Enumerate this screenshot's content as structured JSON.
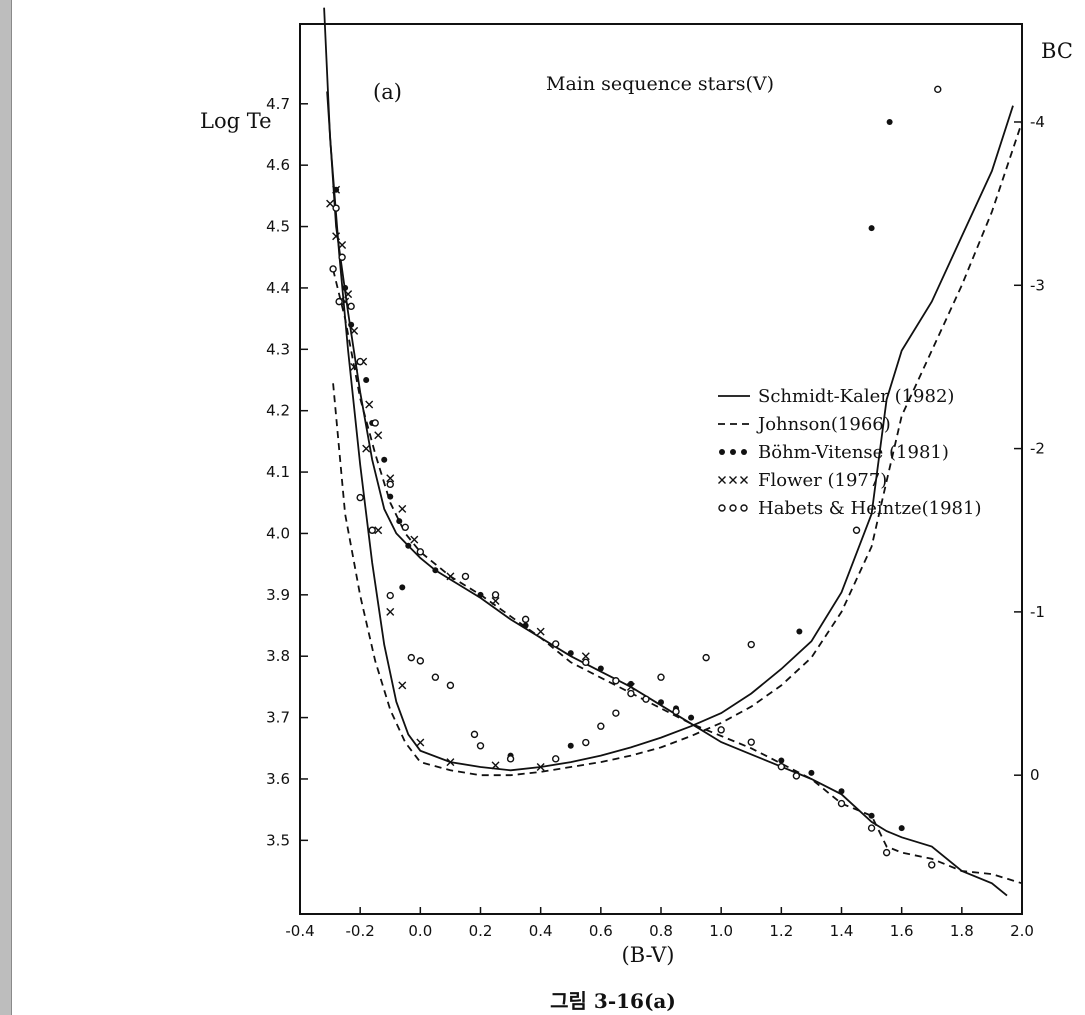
{
  "chart_data": {
    "type": "line",
    "panel_label": "(a)",
    "annotation": "Main sequence stars(V)",
    "xlabel": "(B-V)",
    "ylabel_left": "Log Te",
    "ylabel_right": "BC",
    "caption": "그림 3-16(a)",
    "xlim": [
      -0.4,
      2.0
    ],
    "ylim_left": [
      3.38,
      4.83
    ],
    "ylim_right": [
      0.85,
      -4.6
    ],
    "grid": false,
    "legend_position": "center-right",
    "x_ticks": [
      "-0.4",
      "-0.2",
      "0.0",
      "0.2",
      "0.4",
      "0.6",
      "0.8",
      "1.0",
      "1.2",
      "1.4",
      "1.6",
      "1.8",
      "2.0"
    ],
    "y_left_ticks": [
      "3.5",
      "3.6",
      "3.7",
      "3.8",
      "3.9",
      "4.0",
      "4.1",
      "4.2",
      "4.3",
      "4.4",
      "4.5",
      "4.6",
      "4.7"
    ],
    "y_right_ticks": [
      "0",
      "-1",
      "-2",
      "-3",
      "-4"
    ],
    "series": [
      {
        "name": "Schmidt-Kaler (1982)",
        "style": "solid",
        "logte": [
          [
            -0.31,
            4.72
          ],
          [
            -0.28,
            4.5
          ],
          [
            -0.24,
            4.36
          ],
          [
            -0.2,
            4.23
          ],
          [
            -0.16,
            4.12
          ],
          [
            -0.12,
            4.04
          ],
          [
            -0.08,
            4.0
          ],
          [
            -0.04,
            3.98
          ],
          [
            0.0,
            3.96
          ],
          [
            0.05,
            3.94
          ],
          [
            0.1,
            3.925
          ],
          [
            0.2,
            3.895
          ],
          [
            0.3,
            3.86
          ],
          [
            0.4,
            3.83
          ],
          [
            0.5,
            3.8
          ],
          [
            0.6,
            3.775
          ],
          [
            0.7,
            3.75
          ],
          [
            0.8,
            3.72
          ],
          [
            0.9,
            3.69
          ],
          [
            1.0,
            3.66
          ],
          [
            1.1,
            3.64
          ],
          [
            1.2,
            3.62
          ],
          [
            1.3,
            3.6
          ],
          [
            1.4,
            3.575
          ],
          [
            1.5,
            3.53
          ],
          [
            1.55,
            3.515
          ],
          [
            1.6,
            3.505
          ],
          [
            1.7,
            3.49
          ],
          [
            1.8,
            3.45
          ],
          [
            1.9,
            3.43
          ],
          [
            1.95,
            3.41
          ]
        ],
        "bc": [
          [
            -0.32,
            -4.7
          ],
          [
            -0.3,
            -3.9
          ],
          [
            -0.27,
            -3.2
          ],
          [
            -0.24,
            -2.6
          ],
          [
            -0.2,
            -1.9
          ],
          [
            -0.16,
            -1.3
          ],
          [
            -0.12,
            -0.8
          ],
          [
            -0.08,
            -0.45
          ],
          [
            -0.04,
            -0.25
          ],
          [
            0.0,
            -0.15
          ],
          [
            0.1,
            -0.08
          ],
          [
            0.2,
            -0.05
          ],
          [
            0.3,
            -0.03
          ],
          [
            0.4,
            -0.05
          ],
          [
            0.5,
            -0.08
          ],
          [
            0.6,
            -0.12
          ],
          [
            0.7,
            -0.17
          ],
          [
            0.8,
            -0.23
          ],
          [
            0.9,
            -0.3
          ],
          [
            1.0,
            -0.38
          ],
          [
            1.1,
            -0.5
          ],
          [
            1.2,
            -0.65
          ],
          [
            1.3,
            -0.82
          ],
          [
            1.4,
            -1.12
          ],
          [
            1.5,
            -1.6
          ],
          [
            1.55,
            -2.3
          ],
          [
            1.6,
            -2.6
          ],
          [
            1.7,
            -2.9
          ],
          [
            1.8,
            -3.3
          ],
          [
            1.9,
            -3.7
          ],
          [
            1.97,
            -4.1
          ]
        ]
      },
      {
        "name": "Johnson(1966)",
        "style": "dashed",
        "logte": [
          [
            -0.29,
            4.43
          ],
          [
            -0.25,
            4.35
          ],
          [
            -0.2,
            4.22
          ],
          [
            -0.15,
            4.13
          ],
          [
            -0.1,
            4.05
          ],
          [
            -0.05,
            4.0
          ],
          [
            0.0,
            3.97
          ],
          [
            0.1,
            3.93
          ],
          [
            0.2,
            3.9
          ],
          [
            0.3,
            3.865
          ],
          [
            0.4,
            3.83
          ],
          [
            0.5,
            3.79
          ],
          [
            0.6,
            3.765
          ],
          [
            0.7,
            3.74
          ],
          [
            0.8,
            3.715
          ],
          [
            0.9,
            3.69
          ],
          [
            1.0,
            3.67
          ],
          [
            1.1,
            3.65
          ],
          [
            1.2,
            3.625
          ],
          [
            1.3,
            3.6
          ],
          [
            1.4,
            3.56
          ],
          [
            1.5,
            3.54
          ],
          [
            1.55,
            3.49
          ],
          [
            1.6,
            3.48
          ],
          [
            1.7,
            3.47
          ],
          [
            1.8,
            3.45
          ],
          [
            1.9,
            3.445
          ],
          [
            2.0,
            3.43
          ]
        ],
        "bc": [
          [
            -0.29,
            -2.4
          ],
          [
            -0.25,
            -1.6
          ],
          [
            -0.2,
            -1.1
          ],
          [
            -0.15,
            -0.7
          ],
          [
            -0.1,
            -0.4
          ],
          [
            -0.05,
            -0.2
          ],
          [
            0.0,
            -0.08
          ],
          [
            0.1,
            -0.03
          ],
          [
            0.2,
            0.0
          ],
          [
            0.3,
            0.0
          ],
          [
            0.4,
            -0.02
          ],
          [
            0.5,
            -0.05
          ],
          [
            0.6,
            -0.08
          ],
          [
            0.7,
            -0.12
          ],
          [
            0.8,
            -0.17
          ],
          [
            0.9,
            -0.24
          ],
          [
            1.0,
            -0.32
          ],
          [
            1.1,
            -0.42
          ],
          [
            1.2,
            -0.55
          ],
          [
            1.3,
            -0.72
          ],
          [
            1.4,
            -1.0
          ],
          [
            1.5,
            -1.4
          ],
          [
            1.55,
            -1.8
          ],
          [
            1.6,
            -2.2
          ],
          [
            1.7,
            -2.6
          ],
          [
            1.8,
            -3.0
          ],
          [
            1.9,
            -3.45
          ],
          [
            2.0,
            -4.0
          ]
        ]
      },
      {
        "name": "Böhm-Vitense (1981)",
        "style": "filled-dots",
        "logte": [
          [
            -0.28,
            4.56
          ],
          [
            -0.25,
            4.4
          ],
          [
            -0.23,
            4.34
          ],
          [
            -0.18,
            4.25
          ],
          [
            -0.16,
            4.18
          ],
          [
            -0.12,
            4.12
          ],
          [
            -0.1,
            4.06
          ],
          [
            -0.07,
            4.02
          ],
          [
            -0.04,
            3.98
          ],
          [
            0.05,
            3.94
          ],
          [
            0.2,
            3.9
          ],
          [
            0.35,
            3.85
          ],
          [
            0.5,
            3.805
          ],
          [
            0.6,
            3.78
          ],
          [
            0.7,
            3.755
          ],
          [
            0.8,
            3.725
          ],
          [
            0.85,
            3.715
          ],
          [
            0.9,
            3.7
          ],
          [
            1.0,
            3.68
          ],
          [
            1.1,
            3.66
          ],
          [
            1.2,
            3.63
          ],
          [
            1.3,
            3.61
          ],
          [
            1.4,
            3.58
          ],
          [
            1.5,
            3.54
          ],
          [
            1.6,
            3.52
          ]
        ],
        "bc": [
          [
            -0.06,
            -1.15
          ],
          [
            0.3,
            -0.12
          ],
          [
            0.5,
            -0.18
          ],
          [
            1.26,
            -0.88
          ],
          [
            1.5,
            -3.35
          ],
          [
            1.56,
            -4.0
          ]
        ]
      },
      {
        "name": "Flower (1977)",
        "style": "crosses",
        "logte": [
          [
            -0.28,
            4.56
          ],
          [
            -0.26,
            4.47
          ],
          [
            -0.24,
            4.39
          ],
          [
            -0.22,
            4.33
          ],
          [
            -0.19,
            4.28
          ],
          [
            -0.17,
            4.21
          ],
          [
            -0.14,
            4.16
          ],
          [
            -0.1,
            4.09
          ],
          [
            -0.06,
            4.04
          ],
          [
            -0.02,
            3.99
          ],
          [
            0.1,
            3.93
          ],
          [
            0.25,
            3.89
          ],
          [
            0.4,
            3.84
          ],
          [
            0.55,
            3.8
          ],
          [
            0.7,
            3.75
          ]
        ],
        "bc": [
          [
            -0.3,
            -3.5
          ],
          [
            -0.28,
            -3.3
          ],
          [
            -0.25,
            -2.9
          ],
          [
            -0.22,
            -2.5
          ],
          [
            -0.18,
            -2.0
          ],
          [
            -0.14,
            -1.5
          ],
          [
            -0.1,
            -1.0
          ],
          [
            -0.06,
            -0.55
          ],
          [
            0.0,
            -0.2
          ],
          [
            0.1,
            -0.08
          ],
          [
            0.25,
            -0.06
          ],
          [
            0.4,
            -0.05
          ]
        ]
      },
      {
        "name": "Habets & Heintze(1981)",
        "style": "open-circles",
        "logte": [
          [
            -0.28,
            4.53
          ],
          [
            -0.26,
            4.45
          ],
          [
            -0.23,
            4.37
          ],
          [
            -0.2,
            4.28
          ],
          [
            -0.15,
            4.18
          ],
          [
            -0.1,
            4.08
          ],
          [
            -0.05,
            4.01
          ],
          [
            0.0,
            3.97
          ],
          [
            0.15,
            3.93
          ],
          [
            0.25,
            3.9
          ],
          [
            0.35,
            3.86
          ],
          [
            0.45,
            3.82
          ],
          [
            0.55,
            3.79
          ],
          [
            0.65,
            3.76
          ],
          [
            0.75,
            3.73
          ],
          [
            0.85,
            3.71
          ],
          [
            1.0,
            3.68
          ],
          [
            1.1,
            3.66
          ],
          [
            1.2,
            3.62
          ],
          [
            1.25,
            3.605
          ],
          [
            1.4,
            3.56
          ],
          [
            1.5,
            3.52
          ],
          [
            1.55,
            3.48
          ],
          [
            1.7,
            3.46
          ]
        ],
        "bc": [
          [
            -0.29,
            -3.1
          ],
          [
            -0.27,
            -2.9
          ],
          [
            -0.2,
            -1.7
          ],
          [
            -0.16,
            -1.5
          ],
          [
            -0.1,
            -1.1
          ],
          [
            -0.03,
            -0.72
          ],
          [
            0.0,
            -0.7
          ],
          [
            0.05,
            -0.6
          ],
          [
            0.1,
            -0.55
          ],
          [
            0.18,
            -0.25
          ],
          [
            0.2,
            -0.18
          ],
          [
            0.3,
            -0.1
          ],
          [
            0.45,
            -0.1
          ],
          [
            0.55,
            -0.2
          ],
          [
            0.6,
            -0.3
          ],
          [
            0.65,
            -0.38
          ],
          [
            0.7,
            -0.5
          ],
          [
            0.8,
            -0.6
          ],
          [
            0.95,
            -0.72
          ],
          [
            1.1,
            -0.8
          ],
          [
            1.45,
            -1.5
          ],
          [
            1.72,
            -4.2
          ]
        ]
      }
    ]
  }
}
